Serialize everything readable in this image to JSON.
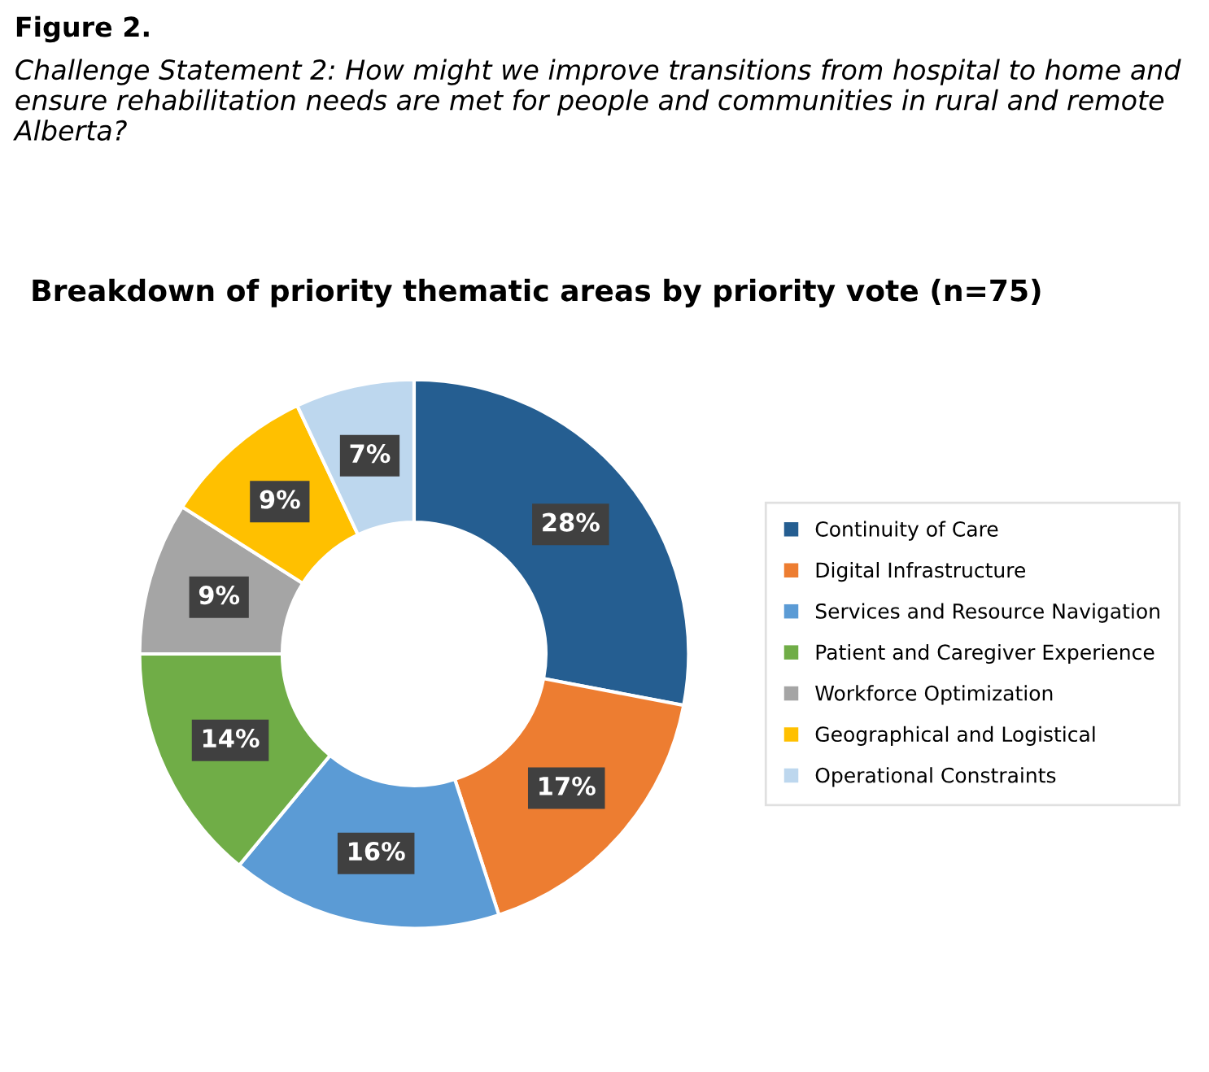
{
  "chart_data": {
    "type": "donut",
    "title": "Breakdown of priority thematic areas by priority vote (n=75)",
    "annotations": [
      "Figure 2.",
      "Challenge Statement 2: How might we improve transitions from hospital to home and ensure rehabilitation needs are met for people and communities in rural and remote Alberta?"
    ],
    "categories": [
      "Continuity of Care",
      "Digital Infrastructure",
      "Services and Resource Navigation",
      "Patient and Caregiver Experience",
      "Workforce Optimization",
      "Geographical and Logistical",
      "Operational Constraints"
    ],
    "values": [
      28,
      17,
      16,
      14,
      9,
      9,
      7
    ],
    "colors": [
      "#255e91",
      "#ed7d31",
      "#5b9bd5",
      "#70ad47",
      "#a5a5a5",
      "#ffc000",
      "#bdd7ee"
    ],
    "value_labels": [
      "28%",
      "17%",
      "16%",
      "14%",
      "9%",
      "9%",
      "7%"
    ],
    "legend": "right"
  }
}
